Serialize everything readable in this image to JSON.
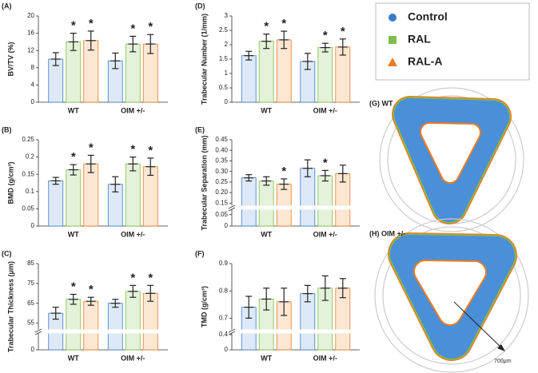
{
  "chart_data": [
    {
      "type": "bar",
      "panel": "(A)",
      "ylabel": "BV/TV (%)",
      "categories": [
        "WT",
        "OIM +/-"
      ],
      "star": "*",
      "ylim": [
        0,
        20
      ],
      "yticks": [
        0,
        4,
        8,
        12,
        16,
        20
      ],
      "series": [
        {
          "name": "Control",
          "color": "#3b7cc7",
          "fill": "#dde9f6",
          "values": [
            10,
            9.6
          ],
          "errors": [
            1.5,
            1.8
          ],
          "stars": [
            false,
            false
          ]
        },
        {
          "name": "RAL",
          "color": "#7dbf4a",
          "fill": "#e4f2d9",
          "values": [
            14,
            13.5
          ],
          "errors": [
            2,
            1.8
          ],
          "stars": [
            true,
            true
          ]
        },
        {
          "name": "RAL-A",
          "color": "#ee7b22",
          "fill": "#fde6d2",
          "values": [
            14.3,
            13.5
          ],
          "errors": [
            2.2,
            2.2
          ],
          "stars": [
            true,
            true
          ]
        }
      ]
    },
    {
      "type": "bar",
      "panel": "(B)",
      "ylabel": "BMD (g/cm³)",
      "categories": [
        "WT",
        "OIM +/-"
      ],
      "star": "*",
      "ylim": [
        0,
        0.25
      ],
      "yticks": [
        0,
        0.05,
        0.1,
        0.15,
        0.2,
        0.25
      ],
      "series": [
        {
          "name": "Control",
          "color": "#3b7cc7",
          "fill": "#dde9f6",
          "values": [
            0.131,
            0.121
          ],
          "errors": [
            0.01,
            0.022
          ],
          "stars": [
            false,
            false
          ]
        },
        {
          "name": "RAL",
          "color": "#7dbf4a",
          "fill": "#e4f2d9",
          "values": [
            0.163,
            0.18
          ],
          "errors": [
            0.015,
            0.02
          ],
          "stars": [
            true,
            true
          ]
        },
        {
          "name": "RAL-A",
          "color": "#ee7b22",
          "fill": "#fde6d2",
          "values": [
            0.18,
            0.172
          ],
          "errors": [
            0.025,
            0.025
          ],
          "stars": [
            true,
            true
          ]
        }
      ]
    },
    {
      "type": "bar",
      "panel": "(C)",
      "ylabel": "Trabecular Thickness (μm)",
      "categories": [
        "WT",
        "OIM +/-"
      ],
      "star": "*",
      "ylim": [
        0,
        85
      ],
      "ybreak": [
        2,
        52
      ],
      "yticks": [
        0,
        55,
        65,
        75,
        85
      ],
      "series": [
        {
          "name": "Control",
          "color": "#3b7cc7",
          "fill": "#dde9f6",
          "values": [
            60,
            65
          ],
          "errors": [
            3,
            2
          ],
          "stars": [
            false,
            false
          ]
        },
        {
          "name": "RAL",
          "color": "#7dbf4a",
          "fill": "#e4f2d9",
          "values": [
            67,
            71
          ],
          "errors": [
            2.5,
            3
          ],
          "stars": [
            true,
            true
          ]
        },
        {
          "name": "RAL-A",
          "color": "#ee7b22",
          "fill": "#fde6d2",
          "values": [
            66,
            70
          ],
          "errors": [
            2,
            4
          ],
          "stars": [
            true,
            true
          ]
        }
      ]
    },
    {
      "type": "bar",
      "panel": "(D)",
      "ylabel": "Trabecular Number (1/mm)",
      "categories": [
        "WT",
        "OIM +/-"
      ],
      "star": "*",
      "ylim": [
        0,
        3
      ],
      "yticks": [
        0,
        0.5,
        1,
        1.5,
        2,
        2.5,
        3
      ],
      "series": [
        {
          "name": "Control",
          "color": "#3b7cc7",
          "fill": "#dde9f6",
          "values": [
            1.62,
            1.42
          ],
          "errors": [
            0.15,
            0.28
          ],
          "stars": [
            false,
            false
          ]
        },
        {
          "name": "RAL",
          "color": "#7dbf4a",
          "fill": "#e4f2d9",
          "values": [
            2.12,
            1.9
          ],
          "errors": [
            0.25,
            0.15
          ],
          "stars": [
            true,
            true
          ]
        },
        {
          "name": "RAL-A",
          "color": "#ee7b22",
          "fill": "#fde6d2",
          "values": [
            2.17,
            1.92
          ],
          "errors": [
            0.3,
            0.28
          ],
          "stars": [
            true,
            true
          ]
        }
      ]
    },
    {
      "type": "bar",
      "panel": "(E)",
      "ylabel": "Trabecular Separation (mm)",
      "categories": [
        "WT",
        "OIM +/-"
      ],
      "star": "*",
      "ylim": [
        0,
        0.45
      ],
      "ybreak": [
        0.07,
        0.14
      ],
      "yticks": [
        0,
        0.05,
        0.15,
        {
          "value": 0.2,
          "label": "0.20"
        },
        0.25,
        {
          "value": 0.3,
          "label": "0.30"
        },
        0.35,
        {
          "value": 0.4,
          "label": "0.40"
        },
        0.45
      ],
      "series": [
        {
          "name": "Control",
          "color": "#3b7cc7",
          "fill": "#dde9f6",
          "values": [
            0.27,
            0.315
          ],
          "errors": [
            0.015,
            0.04
          ],
          "stars": [
            false,
            false
          ]
        },
        {
          "name": "RAL",
          "color": "#7dbf4a",
          "fill": "#e4f2d9",
          "values": [
            0.255,
            0.28
          ],
          "errors": [
            0.02,
            0.025
          ],
          "stars": [
            false,
            true
          ]
        },
        {
          "name": "RAL-A",
          "color": "#ee7b22",
          "fill": "#fde6d2",
          "values": [
            0.24,
            0.29
          ],
          "errors": [
            0.025,
            0.04
          ],
          "stars": [
            true,
            false
          ]
        }
      ]
    },
    {
      "type": "bar",
      "panel": "(F)",
      "ylabel": "TMD (g/cm³)",
      "categories": [
        "WT",
        "OIM +/-"
      ],
      "star": "*",
      "ylim": [
        0,
        0.9
      ],
      "ybreak": [
        0.42,
        0.66
      ],
      "yticks": [
        0,
        0.4,
        0.7,
        0.8,
        0.9
      ],
      "series": [
        {
          "name": "Control",
          "color": "#3b7cc7",
          "fill": "#dde9f6",
          "values": [
            0.74,
            0.79
          ],
          "errors": [
            0.04,
            0.03
          ],
          "stars": [
            false,
            false
          ]
        },
        {
          "name": "RAL",
          "color": "#7dbf4a",
          "fill": "#e4f2d9",
          "values": [
            0.77,
            0.81
          ],
          "errors": [
            0.04,
            0.045
          ],
          "stars": [
            false,
            false
          ]
        },
        {
          "name": "RAL-A",
          "color": "#ee7b22",
          "fill": "#fde6d2",
          "values": [
            0.76,
            0.81
          ],
          "errors": [
            0.05,
            0.035
          ],
          "stars": [
            false,
            false
          ]
        }
      ]
    }
  ],
  "images": [
    {
      "label": "(G) WT"
    },
    {
      "label": "(H) OIM +/-",
      "scale": "700μm"
    }
  ]
}
